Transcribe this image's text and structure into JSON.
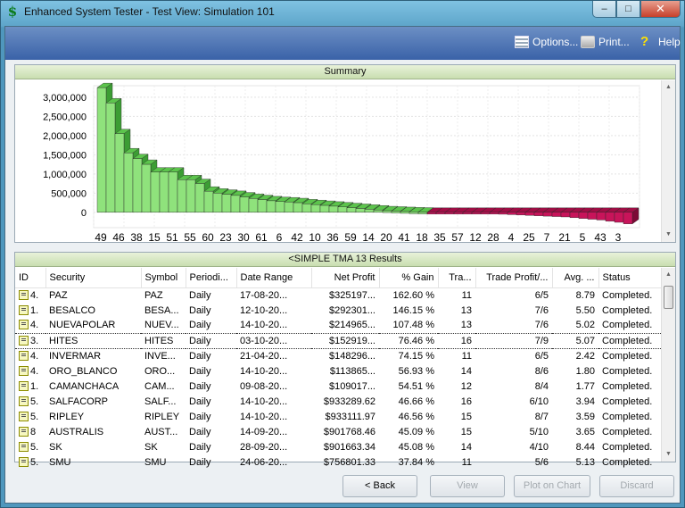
{
  "window": {
    "title": "Enhanced System Tester - Test View: Simulation 101",
    "app_icon": "$",
    "controls": {
      "minimize": "–",
      "maximize": "□",
      "close": "✕"
    }
  },
  "toolbar": {
    "options_label": "Options...",
    "print_label": "Print...",
    "help_label": "Help"
  },
  "summary": {
    "title": "Summary"
  },
  "chart_data": {
    "type": "bar",
    "title": "",
    "xlabel": "",
    "ylabel": "",
    "ylim": [
      -400000,
      3300000
    ],
    "yticks": [
      0,
      500000,
      1000000,
      1500000,
      2000000,
      2500000,
      3000000
    ],
    "ytick_labels": [
      "0",
      "500,000",
      "1,000,000",
      "1,500,000",
      "2,000,000",
      "2,500,000",
      "3,000,000"
    ],
    "xtick_labels": [
      "49",
      "46",
      "38",
      "15",
      "51",
      "55",
      "60",
      "23",
      "30",
      "61",
      "6",
      "42",
      "10",
      "36",
      "59",
      "14",
      "20",
      "41",
      "18",
      "35",
      "57",
      "12",
      "28",
      "4",
      "25",
      "7",
      "21",
      "5",
      "43",
      "3"
    ],
    "values": [
      3250000,
      2850000,
      2050000,
      1550000,
      1400000,
      1250000,
      1050000,
      1050000,
      1050000,
      850000,
      850000,
      750000,
      550000,
      500000,
      470000,
      440000,
      400000,
      360000,
      330000,
      300000,
      280000,
      270000,
      250000,
      220000,
      200000,
      180000,
      160000,
      140000,
      120000,
      100000,
      80000,
      60000,
      40000,
      30000,
      20000,
      10000,
      5000,
      -5000,
      -10000,
      -15000,
      -20000,
      -25000,
      -30000,
      -35000,
      -40000,
      -50000,
      -60000,
      -70000,
      -80000,
      -90000,
      -100000,
      -110000,
      -120000,
      -140000,
      -160000,
      -180000,
      -200000,
      -230000,
      -260000,
      -300000
    ],
    "positive_color": "#8fe27c",
    "negative_color": "#c8145a",
    "grid": true
  },
  "results": {
    "title": "<SIMPLE TMA 13 Results",
    "columns": [
      "ID",
      "Security",
      "Symbol",
      "Periodi...",
      "Date Range",
      "Net Profit",
      "% Gain",
      "Tra...",
      "Trade Profit/...",
      "Avg. ...",
      "Status"
    ],
    "rows": [
      [
        "4.",
        "PAZ",
        "PAZ",
        "Daily",
        "17-08-20...",
        "$325197...",
        "162.60 %",
        "11",
        "6/5",
        "8.79",
        "Completed."
      ],
      [
        "1.",
        "BESALCO",
        "BESA...",
        "Daily",
        "12-10-20...",
        "$292301...",
        "146.15 %",
        "13",
        "7/6",
        "5.50",
        "Completed."
      ],
      [
        "4.",
        "NUEVAPOLAR",
        "NUEV...",
        "Daily",
        "14-10-20...",
        "$214965...",
        "107.48 %",
        "13",
        "7/6",
        "5.02",
        "Completed."
      ],
      [
        "3.",
        "HITES",
        "HITES",
        "Daily",
        "03-10-20...",
        "$152919...",
        "76.46 %",
        "16",
        "7/9",
        "5.07",
        "Completed."
      ],
      [
        "4.",
        "INVERMAR",
        "INVE...",
        "Daily",
        "21-04-20...",
        "$148296...",
        "74.15 %",
        "11",
        "6/5",
        "2.42",
        "Completed."
      ],
      [
        "4.",
        "ORO_BLANCO",
        "ORO...",
        "Daily",
        "14-10-20...",
        "$113865...",
        "56.93 %",
        "14",
        "8/6",
        "1.80",
        "Completed."
      ],
      [
        "1.",
        "CAMANCHACA",
        "CAM...",
        "Daily",
        "09-08-20...",
        "$109017...",
        "54.51 %",
        "12",
        "8/4",
        "1.77",
        "Completed."
      ],
      [
        "5.",
        "SALFACORP",
        "SALF...",
        "Daily",
        "14-10-20...",
        "$933289.62",
        "46.66 %",
        "16",
        "6/10",
        "3.94",
        "Completed."
      ],
      [
        "5.",
        "RIPLEY",
        "RIPLEY",
        "Daily",
        "14-10-20...",
        "$933111.97",
        "46.56 %",
        "15",
        "8/7",
        "3.59",
        "Completed."
      ],
      [
        "8",
        "AUSTRALIS",
        "AUST...",
        "Daily",
        "14-09-20...",
        "$901768.46",
        "45.09 %",
        "15",
        "5/10",
        "3.65",
        "Completed."
      ],
      [
        "5.",
        "SK",
        "SK",
        "Daily",
        "28-09-20...",
        "$901663.34",
        "45.08 %",
        "14",
        "4/10",
        "8.44",
        "Completed."
      ],
      [
        "5.",
        "SMU",
        "SMU",
        "Daily",
        "24-06-20...",
        "$756801.33",
        "37.84 %",
        "11",
        "5/6",
        "5.13",
        "Completed."
      ]
    ],
    "selected_row": 3
  },
  "buttons": {
    "back": "< Back",
    "view": "View",
    "plot": "Plot on Chart",
    "discard": "Discard"
  }
}
